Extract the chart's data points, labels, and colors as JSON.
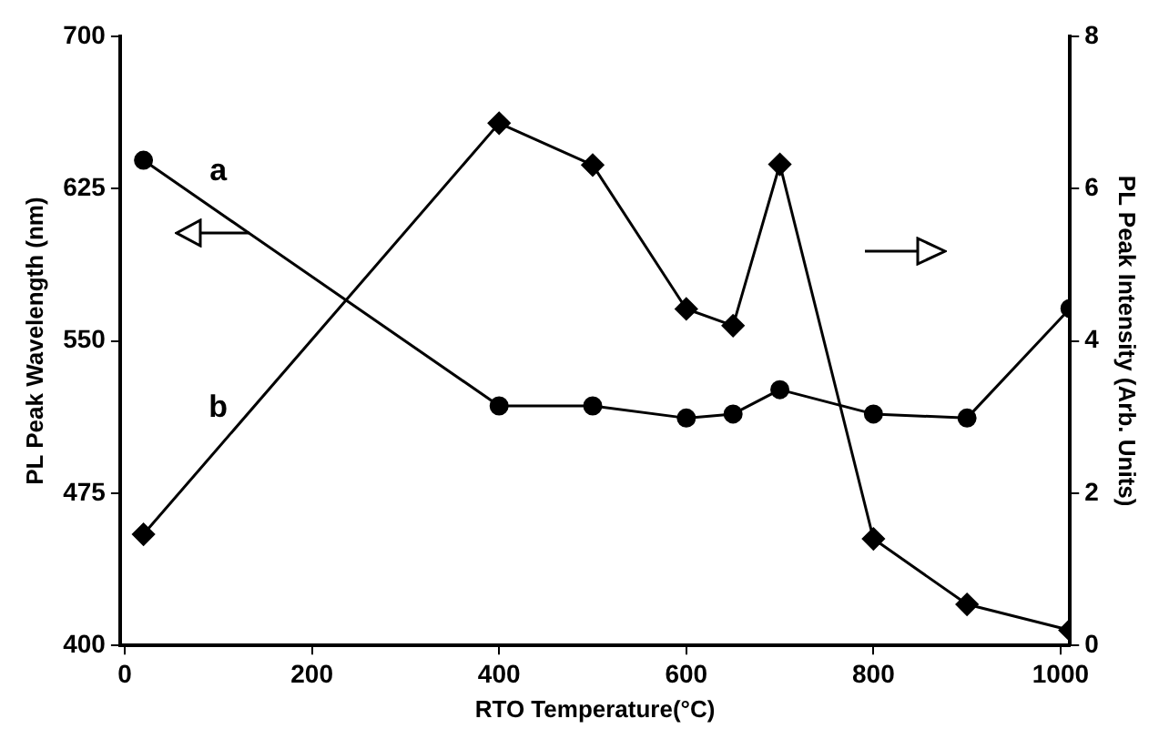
{
  "chart_data": {
    "type": "line",
    "xlabel": "RTO Temperature(°C)",
    "ylabel": "PL Peak Wavelength (nm)",
    "y2label": "PL Peak Intensity (Arb. Units)",
    "x": [
      20,
      400,
      500,
      600,
      650,
      700,
      800,
      900,
      1010
    ],
    "series": [
      {
        "name": "a",
        "color": "#000000",
        "marker": "circle",
        "values": [
          639,
          518,
          518,
          512,
          514,
          526,
          514,
          512,
          566
        ]
      },
      {
        "name": "b",
        "color": "#000000",
        "marker": "diamond",
        "axis": "y2",
        "values": [
          1.46,
          6.86,
          6.31,
          4.42,
          4.2,
          6.32,
          1.4,
          0.54,
          0.2
        ]
      }
    ],
    "xlim": [
      -5,
      1010
    ],
    "xticks": [
      0,
      200,
      400,
      600,
      800,
      1000
    ],
    "ylim": [
      400,
      700
    ],
    "yticks": [
      400,
      475,
      550,
      625,
      700
    ],
    "y2lim": [
      0,
      8
    ],
    "y2ticks": [
      0,
      2,
      4,
      6,
      8
    ],
    "grid": false,
    "legend": false,
    "line_style": "solid"
  }
}
